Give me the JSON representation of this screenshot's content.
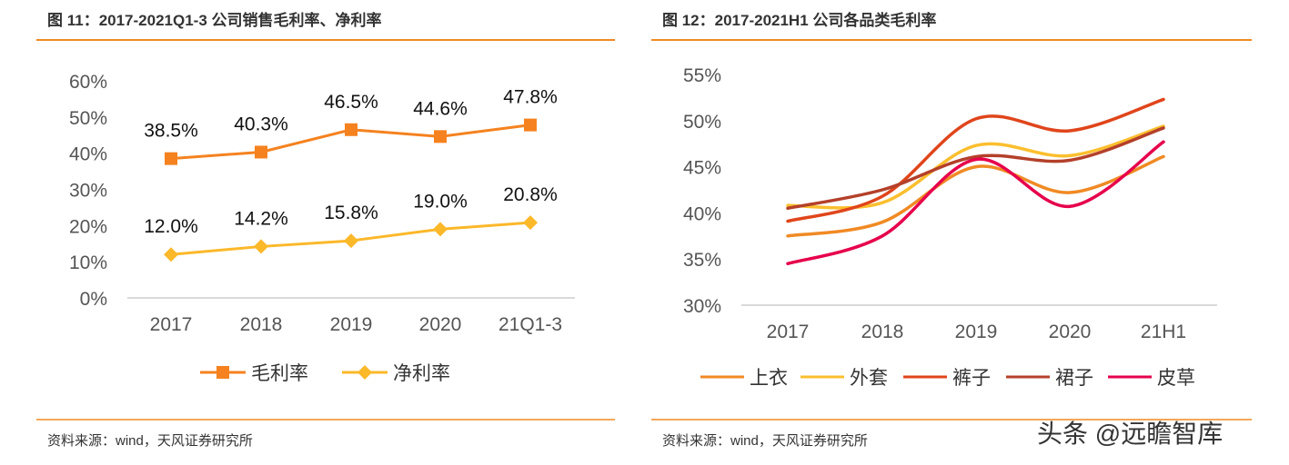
{
  "chart_data": [
    {
      "type": "line",
      "title": "图 11：2017-2021Q1-3 公司销售毛利率、净利率",
      "categories": [
        "2017",
        "2018",
        "2019",
        "2020",
        "21Q1-3"
      ],
      "yticks": [
        "0%",
        "10%",
        "20%",
        "30%",
        "40%",
        "50%",
        "60%"
      ],
      "ylim": [
        0,
        60
      ],
      "series": [
        {
          "name": "毛利率",
          "values": [
            38.5,
            40.3,
            46.5,
            44.6,
            47.8
          ],
          "labels": [
            "38.5%",
            "40.3%",
            "46.5%",
            "44.6%",
            "47.8%"
          ],
          "color": "#f5821f",
          "marker": "square"
        },
        {
          "name": "净利率",
          "values": [
            12.0,
            14.2,
            15.8,
            19.0,
            20.8
          ],
          "labels": [
            "12.0%",
            "14.2%",
            "15.8%",
            "19.0%",
            "20.8%"
          ],
          "color": "#fbb829",
          "marker": "diamond"
        }
      ],
      "legend": "bottom",
      "source": "资料来源：wind，天风证券研究所"
    },
    {
      "type": "line",
      "title": "图 12：2017-2021H1 公司各品类毛利率",
      "categories": [
        "2017",
        "2018",
        "2019",
        "2020",
        "21H1"
      ],
      "yticks": [
        "30%",
        "35%",
        "40%",
        "45%",
        "50%",
        "55%"
      ],
      "ylim": [
        30,
        55
      ],
      "series": [
        {
          "name": "上衣",
          "values": [
            37.5,
            39.0,
            45.0,
            42.2,
            46.1
          ],
          "color": "#f08a24"
        },
        {
          "name": "外套",
          "values": [
            40.8,
            41.1,
            47.3,
            46.2,
            49.4
          ],
          "color": "#fbbf2e"
        },
        {
          "name": "裤子",
          "values": [
            39.1,
            41.8,
            50.2,
            48.9,
            52.3
          ],
          "color": "#e0451b"
        },
        {
          "name": "裙子",
          "values": [
            40.5,
            42.5,
            46.1,
            45.7,
            49.2
          ],
          "color": "#b4402a"
        },
        {
          "name": "皮草",
          "values": [
            34.5,
            37.5,
            45.8,
            40.7,
            47.7
          ],
          "color": "#e6004c"
        }
      ],
      "legend": "bottom",
      "source": "资料来源：wind，天风证券研究所"
    }
  ],
  "watermark": "头条 @远瞻智库",
  "accent": "#f08a24"
}
